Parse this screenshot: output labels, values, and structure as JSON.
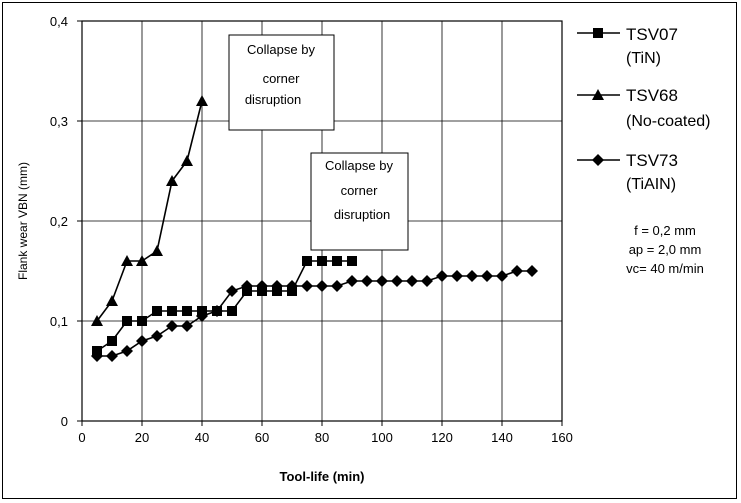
{
  "chart_data": {
    "type": "line",
    "title": "",
    "xlabel": "Tool-life (min)",
    "ylabel": "Flank wear VBN (mm)",
    "xlim": [
      0,
      160
    ],
    "ylim": [
      0,
      0.4
    ],
    "xticks": [
      0,
      20,
      40,
      60,
      80,
      100,
      120,
      140,
      160
    ],
    "yticks": [
      0,
      0.1,
      0.2,
      0.3,
      0.4
    ],
    "xtick_labels": [
      "0",
      "20",
      "40",
      "60",
      "80",
      "100",
      "120",
      "140",
      "160"
    ],
    "ytick_labels": [
      "0",
      "0,1",
      "0,2",
      "0,3",
      "0,4"
    ],
    "grid": true,
    "legend_position": "right",
    "series": [
      {
        "name": "TSV07",
        "sub": "(TiN)",
        "marker": "square",
        "x": [
          5,
          10,
          15,
          20,
          25,
          30,
          35,
          40,
          45,
          50,
          55,
          60,
          65,
          70,
          75,
          80,
          85,
          90
        ],
        "y": [
          0.07,
          0.08,
          0.1,
          0.1,
          0.11,
          0.11,
          0.11,
          0.11,
          0.11,
          0.11,
          0.13,
          0.13,
          0.13,
          0.13,
          0.16,
          0.16,
          0.16,
          0.16
        ]
      },
      {
        "name": "TSV68",
        "sub": "(No-coated)",
        "marker": "triangle",
        "x": [
          5,
          10,
          15,
          20,
          25,
          30,
          35,
          40
        ],
        "y": [
          0.1,
          0.12,
          0.16,
          0.16,
          0.17,
          0.24,
          0.26,
          0.32
        ]
      },
      {
        "name": "TSV73",
        "sub": "(TiAIN)",
        "marker": "diamond",
        "x": [
          5,
          10,
          15,
          20,
          25,
          30,
          35,
          40,
          45,
          50,
          55,
          60,
          65,
          70,
          75,
          80,
          85,
          90,
          95,
          100,
          105,
          110,
          115,
          120,
          125,
          130,
          135,
          140,
          145,
          150
        ],
        "y": [
          0.065,
          0.065,
          0.07,
          0.08,
          0.085,
          0.095,
          0.095,
          0.105,
          0.11,
          0.13,
          0.135,
          0.135,
          0.135,
          0.135,
          0.135,
          0.135,
          0.135,
          0.14,
          0.14,
          0.14,
          0.14,
          0.14,
          0.14,
          0.145,
          0.145,
          0.145,
          0.145,
          0.145,
          0.15,
          0.15
        ]
      }
    ],
    "annotations": [
      {
        "id": "collapse-1",
        "lines": [
          "Collapse by",
          "corner",
          "disruption"
        ]
      },
      {
        "id": "collapse-2",
        "lines": [
          "Collapse by",
          "corner",
          "disruption"
        ]
      }
    ],
    "parameters": [
      "f = 0,2  mm",
      "ap = 2,0 mm",
      "vc= 40 m/min"
    ]
  }
}
